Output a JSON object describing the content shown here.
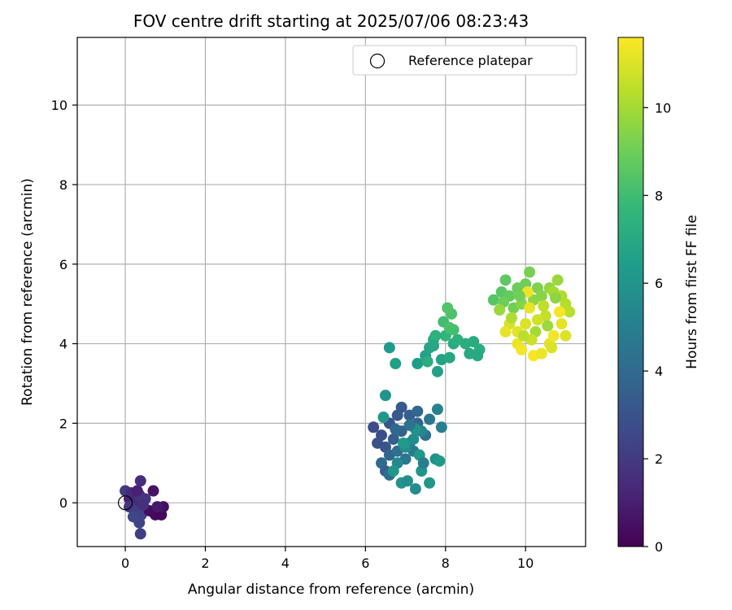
{
  "chart_data": {
    "type": "scatter",
    "title": "FOV centre drift starting at 2025/07/06 08:23:43",
    "xlabel": "Angular distance from reference (arcmin)",
    "ylabel": "Rotation from reference (arcmin)",
    "xlim": [
      -1.2,
      11.5
    ],
    "ylim": [
      -1.1,
      11.7
    ],
    "xticks": [
      0,
      2,
      4,
      6,
      8,
      10
    ],
    "yticks": [
      0,
      2,
      4,
      6,
      8,
      10
    ],
    "grid": true,
    "legend": {
      "position": "top-right",
      "entries": [
        "Reference platepar"
      ]
    },
    "reference_point": {
      "x": 0,
      "y": 0,
      "marker": "open-circle"
    },
    "colorbar": {
      "label": "Hours from first FF file",
      "range": [
        0,
        11.6
      ],
      "ticks": [
        0,
        2,
        4,
        6,
        8,
        10
      ],
      "colormap": "viridis",
      "colors": [
        "#440154",
        "#482878",
        "#3e4989",
        "#31688e",
        "#26828e",
        "#1f9e89",
        "#35b779",
        "#6ece58",
        "#b5de2b",
        "#fde725"
      ]
    },
    "points": [
      {
        "x": 0.1,
        "y": 0.1,
        "t": 1.0
      },
      {
        "x": 0.2,
        "y": 0.2,
        "t": 1.2
      },
      {
        "x": 0.3,
        "y": 0.0,
        "t": 1.5
      },
      {
        "x": 0.35,
        "y": 0.2,
        "t": 1.7
      },
      {
        "x": 0.1,
        "y": -0.1,
        "t": 1.9
      },
      {
        "x": 0.25,
        "y": -0.2,
        "t": 2.1
      },
      {
        "x": 0.4,
        "y": -0.3,
        "t": 2.3
      },
      {
        "x": 0.35,
        "y": -0.5,
        "t": 2.4
      },
      {
        "x": 0.38,
        "y": -0.78,
        "t": 2.2
      },
      {
        "x": 0.38,
        "y": 0.55,
        "t": 1.5
      },
      {
        "x": 0.7,
        "y": 0.3,
        "t": 0.6
      },
      {
        "x": 0.6,
        "y": -0.2,
        "t": 0.4
      },
      {
        "x": 0.75,
        "y": -0.3,
        "t": 0.3
      },
      {
        "x": 0.9,
        "y": -0.3,
        "t": 0.2
      },
      {
        "x": 0.95,
        "y": -0.1,
        "t": 0.5
      },
      {
        "x": 0.8,
        "y": -0.1,
        "t": 0.8
      },
      {
        "x": 0.5,
        "y": 0.1,
        "t": 1.8
      },
      {
        "x": 0.0,
        "y": 0.3,
        "t": 2.0
      },
      {
        "x": 0.2,
        "y": -0.35,
        "t": 2.5
      },
      {
        "x": 0.15,
        "y": 0.25,
        "t": 1.3
      },
      {
        "x": 0.45,
        "y": -0.05,
        "t": 1.6
      },
      {
        "x": 0.3,
        "y": 0.3,
        "t": 1.1
      },
      {
        "x": 6.2,
        "y": 1.9,
        "t": 2.6
      },
      {
        "x": 6.4,
        "y": 1.7,
        "t": 2.8
      },
      {
        "x": 6.6,
        "y": 2.0,
        "t": 3.0
      },
      {
        "x": 6.8,
        "y": 2.2,
        "t": 3.2
      },
      {
        "x": 6.9,
        "y": 2.4,
        "t": 3.3
      },
      {
        "x": 7.1,
        "y": 2.2,
        "t": 3.5
      },
      {
        "x": 7.3,
        "y": 2.0,
        "t": 3.7
      },
      {
        "x": 6.5,
        "y": 1.4,
        "t": 3.1
      },
      {
        "x": 6.7,
        "y": 1.6,
        "t": 3.4
      },
      {
        "x": 6.9,
        "y": 1.8,
        "t": 3.6
      },
      {
        "x": 7.1,
        "y": 1.5,
        "t": 3.9
      },
      {
        "x": 6.3,
        "y": 1.5,
        "t": 2.9
      },
      {
        "x": 6.6,
        "y": 1.2,
        "t": 3.8
      },
      {
        "x": 6.8,
        "y": 1.3,
        "t": 4.2
      },
      {
        "x": 7.0,
        "y": 1.1,
        "t": 4.5
      },
      {
        "x": 7.2,
        "y": 1.3,
        "t": 4.8
      },
      {
        "x": 6.4,
        "y": 1.0,
        "t": 4.0
      },
      {
        "x": 6.5,
        "y": 0.8,
        "t": 3.5
      },
      {
        "x": 6.6,
        "y": 0.7,
        "t": 4.1
      },
      {
        "x": 7.5,
        "y": 1.7,
        "t": 4.3
      },
      {
        "x": 7.6,
        "y": 2.1,
        "t": 4.6
      },
      {
        "x": 7.3,
        "y": 2.3,
        "t": 3.8
      },
      {
        "x": 7.8,
        "y": 2.35,
        "t": 5.2
      },
      {
        "x": 7.9,
        "y": 1.9,
        "t": 5.0
      },
      {
        "x": 7.4,
        "y": 1.8,
        "t": 5.4
      },
      {
        "x": 7.2,
        "y": 1.6,
        "t": 5.6
      },
      {
        "x": 7.0,
        "y": 1.4,
        "t": 5.8
      },
      {
        "x": 6.8,
        "y": 1.0,
        "t": 5.5
      },
      {
        "x": 6.9,
        "y": 0.5,
        "t": 5.9
      },
      {
        "x": 7.05,
        "y": 0.55,
        "t": 5.7
      },
      {
        "x": 7.25,
        "y": 0.35,
        "t": 5.6
      },
      {
        "x": 7.4,
        "y": 0.8,
        "t": 6.0
      },
      {
        "x": 7.6,
        "y": 0.5,
        "t": 6.1
      },
      {
        "x": 7.75,
        "y": 1.1,
        "t": 5.9
      },
      {
        "x": 7.85,
        "y": 1.05,
        "t": 6.2
      },
      {
        "x": 6.7,
        "y": 0.8,
        "t": 6.1
      },
      {
        "x": 6.95,
        "y": 1.5,
        "t": 6.3
      },
      {
        "x": 7.35,
        "y": 1.2,
        "t": 6.2
      },
      {
        "x": 6.5,
        "y": 2.7,
        "t": 6.0
      },
      {
        "x": 6.45,
        "y": 2.15,
        "t": 6.1
      },
      {
        "x": 7.25,
        "y": 1.85,
        "t": 5.9
      },
      {
        "x": 7.45,
        "y": 1.0,
        "t": 4.9
      },
      {
        "x": 6.75,
        "y": 1.85,
        "t": 3.9
      },
      {
        "x": 7.1,
        "y": 1.95,
        "t": 4.4
      },
      {
        "x": 6.6,
        "y": 3.9,
        "t": 6.3
      },
      {
        "x": 6.75,
        "y": 3.5,
        "t": 6.5
      },
      {
        "x": 7.3,
        "y": 3.5,
        "t": 6.4
      },
      {
        "x": 7.5,
        "y": 3.7,
        "t": 6.6
      },
      {
        "x": 7.6,
        "y": 3.9,
        "t": 6.8
      },
      {
        "x": 7.7,
        "y": 4.1,
        "t": 7.0
      },
      {
        "x": 7.8,
        "y": 3.3,
        "t": 6.6
      },
      {
        "x": 7.9,
        "y": 3.6,
        "t": 6.7
      },
      {
        "x": 8.1,
        "y": 3.65,
        "t": 6.9
      },
      {
        "x": 8.2,
        "y": 4.0,
        "t": 7.1
      },
      {
        "x": 8.0,
        "y": 4.2,
        "t": 7.6
      },
      {
        "x": 7.75,
        "y": 4.2,
        "t": 7.4
      },
      {
        "x": 8.3,
        "y": 4.1,
        "t": 7.3
      },
      {
        "x": 8.5,
        "y": 4.0,
        "t": 7.2
      },
      {
        "x": 8.6,
        "y": 3.75,
        "t": 7.0
      },
      {
        "x": 8.7,
        "y": 4.05,
        "t": 7.1
      },
      {
        "x": 8.85,
        "y": 3.85,
        "t": 7.2
      },
      {
        "x": 8.8,
        "y": 3.7,
        "t": 7.0
      },
      {
        "x": 7.95,
        "y": 4.55,
        "t": 8.0
      },
      {
        "x": 8.1,
        "y": 4.4,
        "t": 8.2
      },
      {
        "x": 8.2,
        "y": 4.35,
        "t": 8.1
      },
      {
        "x": 8.15,
        "y": 4.75,
        "t": 8.3
      },
      {
        "x": 8.05,
        "y": 4.9,
        "t": 8.4
      },
      {
        "x": 7.7,
        "y": 3.95,
        "t": 6.9
      },
      {
        "x": 7.55,
        "y": 3.55,
        "t": 7.2
      },
      {
        "x": 9.2,
        "y": 5.1,
        "t": 8.5
      },
      {
        "x": 9.4,
        "y": 5.3,
        "t": 8.6
      },
      {
        "x": 9.5,
        "y": 5.6,
        "t": 8.7
      },
      {
        "x": 9.6,
        "y": 5.2,
        "t": 8.8
      },
      {
        "x": 9.8,
        "y": 5.4,
        "t": 8.9
      },
      {
        "x": 10.0,
        "y": 5.5,
        "t": 9.0
      },
      {
        "x": 10.1,
        "y": 5.8,
        "t": 9.2
      },
      {
        "x": 10.3,
        "y": 5.4,
        "t": 9.3
      },
      {
        "x": 9.7,
        "y": 4.9,
        "t": 9.1
      },
      {
        "x": 9.9,
        "y": 5.0,
        "t": 9.4
      },
      {
        "x": 10.2,
        "y": 5.1,
        "t": 9.6
      },
      {
        "x": 10.4,
        "y": 5.2,
        "t": 9.5
      },
      {
        "x": 10.6,
        "y": 5.4,
        "t": 9.7
      },
      {
        "x": 10.8,
        "y": 5.6,
        "t": 9.8
      },
      {
        "x": 10.7,
        "y": 5.3,
        "t": 10.0
      },
      {
        "x": 10.9,
        "y": 5.2,
        "t": 10.2
      },
      {
        "x": 11.0,
        "y": 5.0,
        "t": 10.3
      },
      {
        "x": 11.1,
        "y": 4.8,
        "t": 10.4
      },
      {
        "x": 10.5,
        "y": 4.7,
        "t": 10.6
      },
      {
        "x": 10.3,
        "y": 4.6,
        "t": 10.8
      },
      {
        "x": 10.0,
        "y": 4.5,
        "t": 11.0
      },
      {
        "x": 9.8,
        "y": 4.3,
        "t": 11.1
      },
      {
        "x": 9.6,
        "y": 4.5,
        "t": 10.9
      },
      {
        "x": 9.5,
        "y": 4.3,
        "t": 11.2
      },
      {
        "x": 9.8,
        "y": 4.0,
        "t": 11.3
      },
      {
        "x": 9.9,
        "y": 3.85,
        "t": 11.4
      },
      {
        "x": 10.2,
        "y": 3.7,
        "t": 11.5
      },
      {
        "x": 10.4,
        "y": 3.75,
        "t": 11.3
      },
      {
        "x": 10.6,
        "y": 4.0,
        "t": 11.1
      },
      {
        "x": 10.7,
        "y": 4.2,
        "t": 11.4
      },
      {
        "x": 10.9,
        "y": 4.5,
        "t": 11.2
      },
      {
        "x": 11.0,
        "y": 4.2,
        "t": 11.0
      },
      {
        "x": 10.85,
        "y": 4.8,
        "t": 11.5
      },
      {
        "x": 10.1,
        "y": 4.9,
        "t": 11.2
      },
      {
        "x": 10.05,
        "y": 5.3,
        "t": 11.3
      },
      {
        "x": 9.65,
        "y": 4.65,
        "t": 10.2
      },
      {
        "x": 10.25,
        "y": 4.3,
        "t": 10.0
      },
      {
        "x": 10.55,
        "y": 4.45,
        "t": 9.9
      },
      {
        "x": 9.45,
        "y": 5.05,
        "t": 9.0
      },
      {
        "x": 10.75,
        "y": 5.15,
        "t": 9.6
      },
      {
        "x": 9.35,
        "y": 4.85,
        "t": 9.8
      },
      {
        "x": 10.45,
        "y": 4.95,
        "t": 10.5
      },
      {
        "x": 10.15,
        "y": 4.1,
        "t": 10.7
      },
      {
        "x": 9.95,
        "y": 4.2,
        "t": 10.4
      },
      {
        "x": 10.65,
        "y": 3.9,
        "t": 11.0
      },
      {
        "x": 9.85,
        "y": 5.2,
        "t": 9.1
      }
    ]
  }
}
